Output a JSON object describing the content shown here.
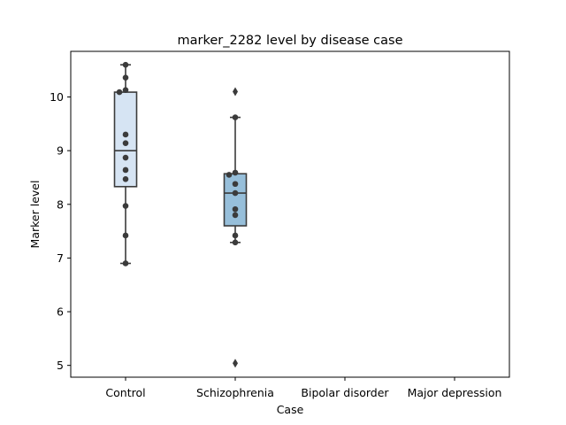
{
  "chart_data": {
    "type": "box",
    "title": "marker_2282 level by disease case",
    "xlabel": "Case",
    "ylabel": "Marker level",
    "categories": [
      "Control",
      "Schizophrenia",
      "Bipolar disorder",
      "Major depression"
    ],
    "ylim": [
      4.78,
      10.85
    ],
    "yticks": [
      5,
      6,
      7,
      8,
      9,
      10
    ],
    "grid": false,
    "boxes": [
      {
        "category": "Control",
        "q1": 8.33,
        "median": 9.0,
        "q3": 10.09,
        "whisker_low": 6.9,
        "whisker_high": 10.6,
        "fill": "#d6e4f3",
        "outliers": []
      },
      {
        "category": "Schizophrenia",
        "q1": 7.6,
        "median": 8.21,
        "q3": 8.57,
        "whisker_low": 7.29,
        "whisker_high": 9.62,
        "fill": "#97bfda",
        "outliers": [
          10.1,
          5.04
        ]
      },
      {
        "category": "Bipolar disorder",
        "empty": true
      },
      {
        "category": "Major depression",
        "empty": true
      }
    ],
    "points": [
      {
        "category": "Control",
        "values": [
          10.6,
          10.36,
          10.13,
          10.09,
          9.3,
          9.14,
          8.87,
          8.64,
          8.47,
          7.97,
          7.42,
          6.9
        ]
      },
      {
        "category": "Schizophrenia",
        "values": [
          9.62,
          8.59,
          8.55,
          8.38,
          8.21,
          7.91,
          7.8,
          7.42,
          7.29
        ]
      }
    ]
  }
}
